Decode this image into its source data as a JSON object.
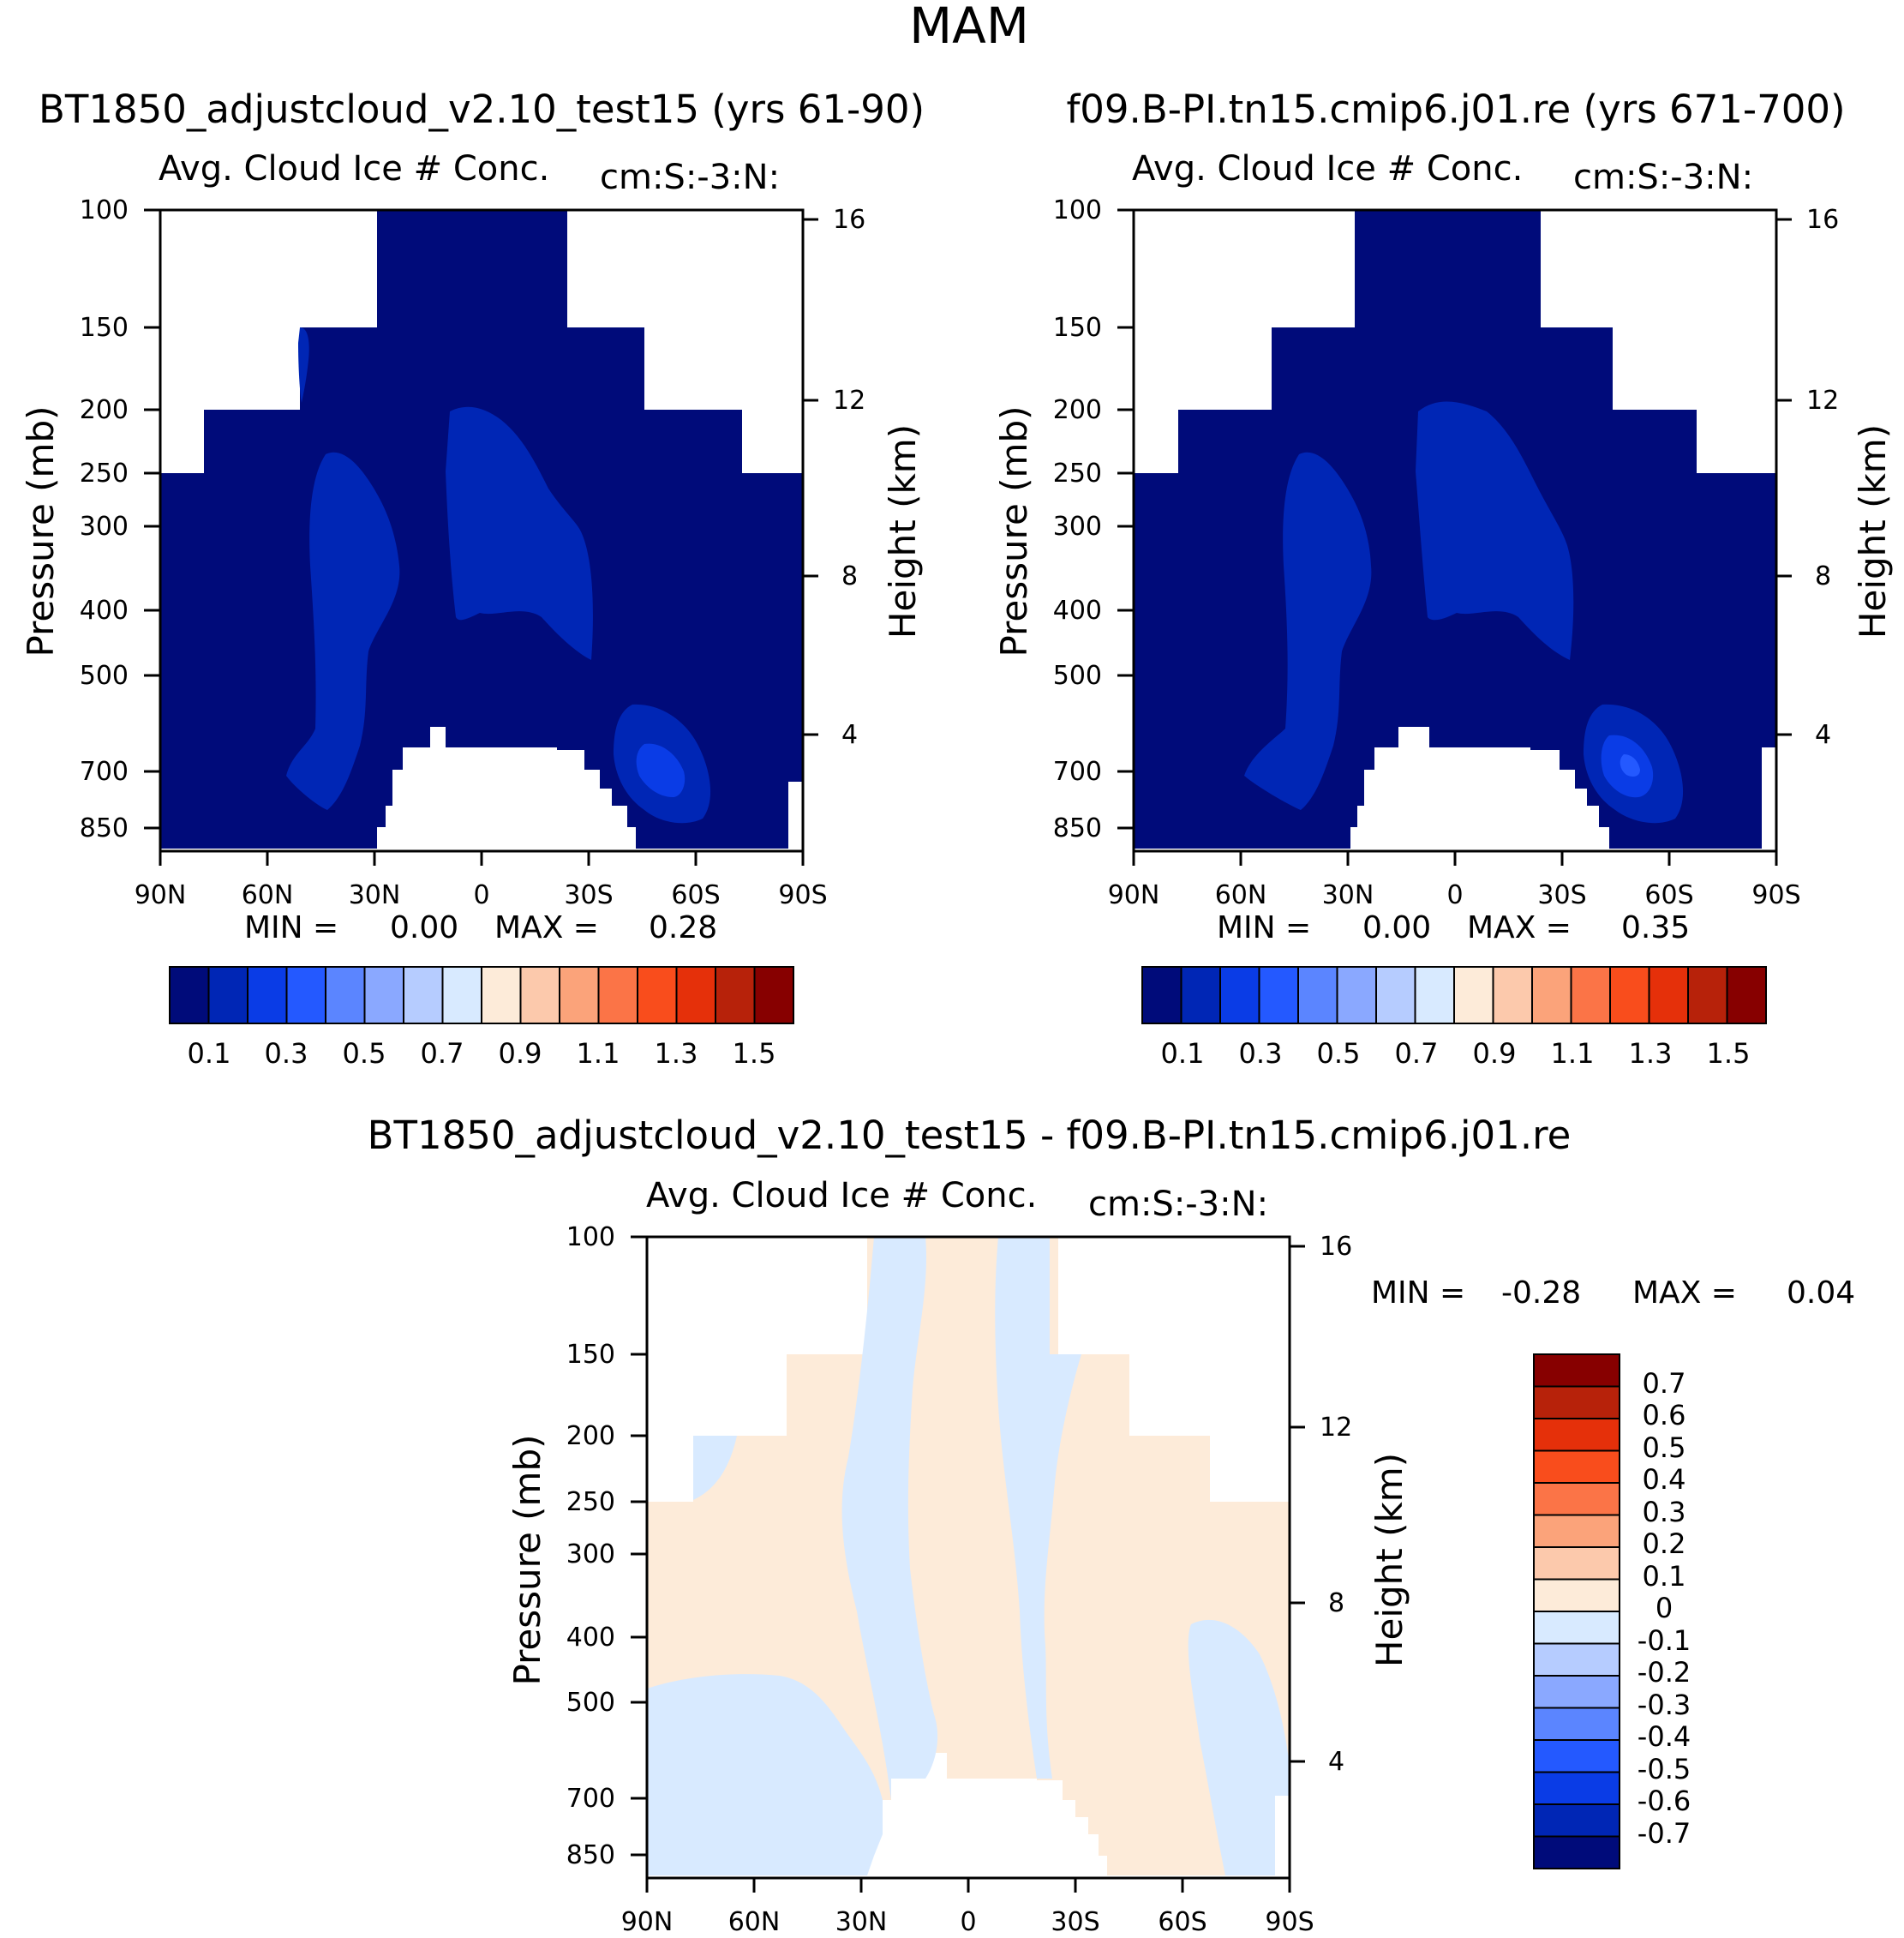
{
  "page_title": "MAM",
  "palette": {
    "abs": [
      "#000b7a",
      "#0026b5",
      "#0a3ce6",
      "#2459ff",
      "#5b85ff",
      "#8aa8ff",
      "#b6ccff",
      "#d8eaff",
      "#fdebd9",
      "#fcc9ac",
      "#fba37a",
      "#fb7447",
      "#f94d1c",
      "#e5300a",
      "#b7220a",
      "#870000"
    ],
    "diff": [
      "#870000",
      "#b7220a",
      "#e5300a",
      "#f94d1c",
      "#fb7447",
      "#fba37a",
      "#fcc9ac",
      "#fdebd9",
      "#d8eaff",
      "#b6ccff",
      "#8aa8ff",
      "#5b85ff",
      "#2459ff",
      "#0a3ce6",
      "#0026b5",
      "#000b7a"
    ],
    "fill_dark": "#000b7a",
    "fill_mid": "#0026b5",
    "fill_light": "#0a3ce6",
    "fill_lighter": "#2459ff",
    "diff_pos": "#fdebd9",
    "diff_neg": "#d8eaff"
  },
  "chart_data": [
    {
      "type": "heatmap",
      "panel": "top-left",
      "case_title": "BT1850_adjustcloud_v2.10_test15 (yrs 61-90)",
      "variable_label": "Avg. Cloud Ice # Conc.",
      "units_label": "cm:S:-3:N:",
      "ylabel": "Pressure (mb)",
      "y2label": "Height (km)",
      "x_ticks": [
        "90N",
        "60N",
        "30N",
        "0",
        "30S",
        "60S",
        "90S"
      ],
      "x_range": [
        90,
        -90
      ],
      "y_ticks": [
        "100",
        "150",
        "200",
        "250",
        "300",
        "400",
        "500",
        "700",
        "850"
      ],
      "y_range_mb": [
        100,
        1000
      ],
      "y2_ticks": [
        "16",
        "12",
        "8",
        "4"
      ],
      "min_label": "MIN =",
      "min_value": "0.00",
      "max_label": "MAX =",
      "max_value": "0.28",
      "colorbar_labels": [
        "0.1",
        "0.3",
        "0.5",
        "0.7",
        "0.9",
        "1.1",
        "1.3",
        "1.5"
      ],
      "colorbar_levels": [
        0.1,
        0.2,
        0.3,
        0.4,
        0.5,
        0.6,
        0.7,
        0.8,
        0.9,
        1.0,
        1.1,
        1.2,
        1.3,
        1.4,
        1.5
      ]
    },
    {
      "type": "heatmap",
      "panel": "top-right",
      "case_title": "f09.B-PI.tn15.cmip6.j01.re (yrs 671-700)",
      "variable_label": "Avg. Cloud Ice # Conc.",
      "units_label": "cm:S:-3:N:",
      "ylabel": "Pressure (mb)",
      "y2label": "Height (km)",
      "x_ticks": [
        "90N",
        "60N",
        "30N",
        "0",
        "30S",
        "60S",
        "90S"
      ],
      "x_range": [
        90,
        -90
      ],
      "y_ticks": [
        "100",
        "150",
        "200",
        "250",
        "300",
        "400",
        "500",
        "700",
        "850"
      ],
      "y_range_mb": [
        100,
        1000
      ],
      "y2_ticks": [
        "16",
        "12",
        "8",
        "4"
      ],
      "min_label": "MIN =",
      "min_value": "0.00",
      "max_label": "MAX =",
      "max_value": "0.35",
      "colorbar_labels": [
        "0.1",
        "0.3",
        "0.5",
        "0.7",
        "0.9",
        "1.1",
        "1.3",
        "1.5"
      ],
      "colorbar_levels": [
        0.1,
        0.2,
        0.3,
        0.4,
        0.5,
        0.6,
        0.7,
        0.8,
        0.9,
        1.0,
        1.1,
        1.2,
        1.3,
        1.4,
        1.5
      ]
    },
    {
      "type": "heatmap",
      "panel": "bottom",
      "case_title": "BT1850_adjustcloud_v2.10_test15 - f09.B-PI.tn15.cmip6.j01.re",
      "variable_label": "Avg. Cloud Ice # Conc.",
      "units_label": "cm:S:-3:N:",
      "ylabel": "Pressure (mb)",
      "y2label": "Height (km)",
      "x_ticks": [
        "90N",
        "60N",
        "30N",
        "0",
        "30S",
        "60S",
        "90S"
      ],
      "x_range": [
        90,
        -90
      ],
      "y_ticks": [
        "100",
        "150",
        "200",
        "250",
        "300",
        "400",
        "500",
        "700",
        "850"
      ],
      "y_range_mb": [
        100,
        1000
      ],
      "y2_ticks": [
        "16",
        "12",
        "8",
        "4"
      ],
      "min_label": "MIN =",
      "min_value": "-0.28",
      "max_label": "MAX =",
      "max_value": "0.04",
      "colorbar_labels": [
        "0.7",
        "0.6",
        "0.5",
        "0.4",
        "0.3",
        "0.2",
        "0.1",
        "0",
        "-0.1",
        "-0.2",
        "-0.3",
        "-0.4",
        "-0.5",
        "-0.6",
        "-0.7"
      ],
      "colorbar_levels": [
        0.7,
        0.6,
        0.5,
        0.4,
        0.3,
        0.2,
        0.1,
        0,
        -0.1,
        -0.2,
        -0.3,
        -0.4,
        -0.5,
        -0.6,
        -0.7
      ]
    }
  ]
}
